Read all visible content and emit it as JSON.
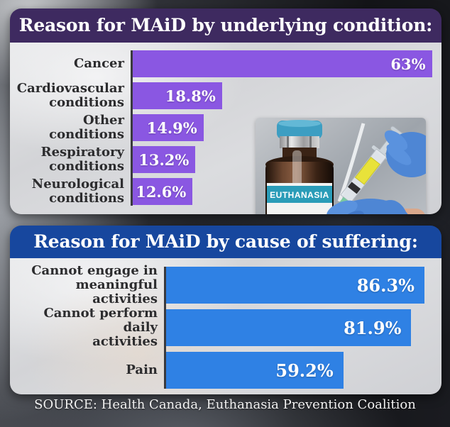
{
  "source": {
    "text": "SOURCE: Health Canada, Euthanasia Prevention Coalition"
  },
  "photo": {
    "vial_label": "EUTHANASIA"
  },
  "chart_data": [
    {
      "type": "bar",
      "orientation": "horizontal",
      "title": "Reason for MAiD by underlying condition:",
      "categories": [
        "Cancer",
        "Cardiovascular conditions",
        "Other conditions",
        "Respiratory conditions",
        "Neurological conditions"
      ],
      "values": [
        63,
        18.8,
        14.9,
        13.2,
        12.6
      ],
      "value_labels": [
        "63%",
        "18.8%",
        "14.9%",
        "13.2%",
        "12.6%"
      ],
      "label_lines": [
        [
          "Cancer"
        ],
        [
          "Cardiovascular",
          "conditions"
        ],
        [
          "Other conditions"
        ],
        [
          "Respiratory",
          "conditions"
        ],
        [
          "Neurological",
          "conditions"
        ]
      ],
      "unit": "%",
      "axis_max": 65,
      "bar_color": "#8a57e2",
      "header_color": "#3e2a60",
      "legend": "none",
      "grid": "off"
    },
    {
      "type": "bar",
      "orientation": "horizontal",
      "title": "Reason for MAiD by cause of suffering:",
      "categories": [
        "Cannot engage in meaningful activities",
        "Cannot perform daily activities",
        "Pain"
      ],
      "values": [
        86.3,
        81.9,
        59.2
      ],
      "value_labels": [
        "86.3%",
        "81.9%",
        "59.2%"
      ],
      "label_lines": [
        [
          "Cannot engage in",
          "meaningful activities"
        ],
        [
          "Cannot perform daily",
          "activities"
        ],
        [
          "Pain"
        ]
      ],
      "unit": "%",
      "axis_max": 92,
      "bar_color": "#2f81e4",
      "header_color": "#17479e",
      "legend": "none",
      "grid": "off"
    }
  ]
}
